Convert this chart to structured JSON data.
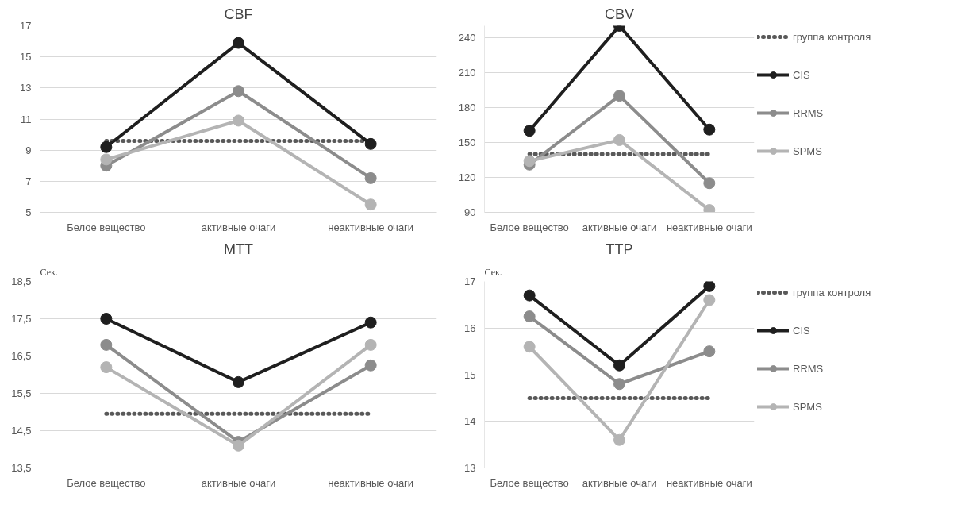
{
  "chart_data": [
    {
      "type": "line",
      "title": "CBF",
      "categories": [
        "Белое вещество",
        "активные очаги",
        "неактивные очаги"
      ],
      "ylim": [
        5,
        17
      ],
      "yticks": [
        5,
        7,
        9,
        11,
        13,
        15,
        17
      ],
      "grid": "y",
      "legend": false,
      "marker": "circle",
      "series": [
        {
          "color": "#595959",
          "values": [
            9.6,
            9.6,
            9.6
          ],
          "line_style": "dotted",
          "marker": "none"
        },
        {
          "color": "#1f1f1f",
          "values": [
            9.2,
            15.9,
            9.4
          ]
        },
        {
          "color": "#8c8c8c",
          "values": [
            8.0,
            12.8,
            7.2
          ]
        },
        {
          "color": "#b4b4b4",
          "values": [
            8.4,
            10.9,
            5.5
          ]
        }
      ]
    },
    {
      "type": "line",
      "title": "CBV",
      "categories": [
        "Белое вещество",
        "активные очаги",
        "неактивные очаги"
      ],
      "ylim": [
        90,
        250
      ],
      "yticks": [
        90,
        120,
        150,
        180,
        210,
        240
      ],
      "grid": "y",
      "legend": "right",
      "marker": "circle",
      "series": [
        {
          "name": "группа контроля",
          "color": "#595959",
          "values": [
            140,
            140,
            140
          ],
          "line_style": "dotted",
          "marker": "none"
        },
        {
          "name": "CIS",
          "color": "#1f1f1f",
          "values": [
            160,
            250,
            161
          ]
        },
        {
          "name": "RRMS",
          "color": "#8c8c8c",
          "values": [
            131,
            190,
            115
          ]
        },
        {
          "name": "SPMS",
          "color": "#b4b4b4",
          "values": [
            134,
            152,
            92
          ]
        }
      ]
    },
    {
      "type": "line",
      "title": "MTT",
      "ylabel": "Сек.",
      "categories": [
        "Белое вещество",
        "активные очаги",
        "неактивные очаги"
      ],
      "ylim": [
        13.5,
        18.5
      ],
      "yticks": [
        {
          "value": 13.5,
          "label": "13,5"
        },
        {
          "value": 14.5,
          "label": "14,5"
        },
        {
          "value": 15.5,
          "label": "15,5"
        },
        {
          "value": 16.5,
          "label": "16,5"
        },
        {
          "value": 17.5,
          "label": "17,5"
        },
        {
          "value": 18.5,
          "label": "18,5"
        }
      ],
      "grid": "y",
      "legend": false,
      "marker": "circle",
      "series": [
        {
          "color": "#595959",
          "values": [
            14.95,
            14.95,
            14.95
          ],
          "line_style": "dotted",
          "marker": "none"
        },
        {
          "color": "#1f1f1f",
          "values": [
            17.5,
            15.8,
            17.4
          ]
        },
        {
          "color": "#8c8c8c",
          "values": [
            16.8,
            14.2,
            16.25
          ]
        },
        {
          "color": "#b4b4b4",
          "values": [
            16.2,
            14.1,
            16.8
          ]
        }
      ]
    },
    {
      "type": "line",
      "title": "TTP",
      "ylabel": "Сек.",
      "categories": [
        "Белое вещество",
        "активные очаги",
        "неактивные очаги"
      ],
      "ylim": [
        13,
        17
      ],
      "yticks": [
        13,
        14,
        15,
        16,
        17
      ],
      "grid": "y",
      "legend": "right",
      "marker": "circle",
      "series": [
        {
          "name": "группа контроля",
          "color": "#595959",
          "values": [
            14.5,
            14.5,
            14.5
          ],
          "line_style": "dotted",
          "marker": "none"
        },
        {
          "name": "CIS",
          "color": "#1f1f1f",
          "values": [
            16.7,
            15.2,
            16.9
          ]
        },
        {
          "name": "RRMS",
          "color": "#8c8c8c",
          "values": [
            16.25,
            14.8,
            15.5
          ]
        },
        {
          "name": "SPMS",
          "color": "#b4b4b4",
          "values": [
            15.6,
            13.6,
            16.6
          ]
        }
      ]
    }
  ]
}
